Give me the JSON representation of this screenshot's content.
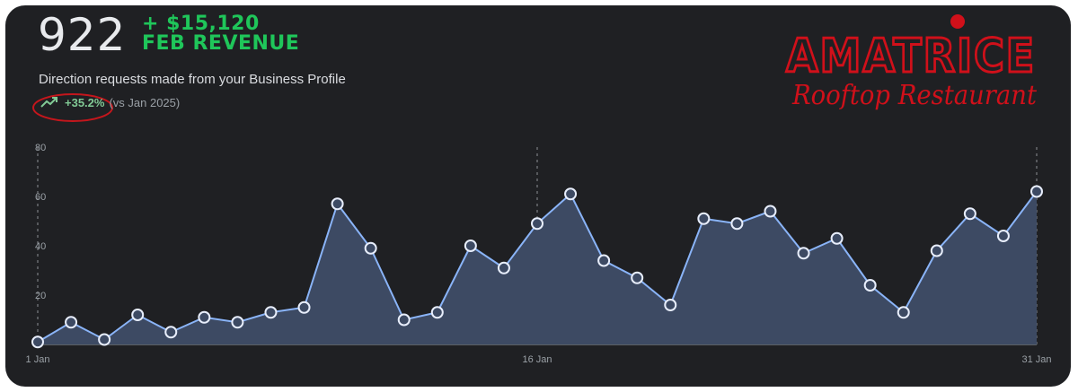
{
  "header": {
    "metric_value": "922",
    "revenue_line1": "+ $15,120",
    "revenue_line2": "FEB REVENUE",
    "subtitle": "Direction requests made from your Business Profile",
    "trend_icon": "trending-up-icon",
    "trend_value": "+35.2%",
    "trend_compare": "(vs Jan 2025)"
  },
  "logo": {
    "name": "AMATRICE",
    "tagline": "Rooftop Restaurant",
    "color": "#d0101a"
  },
  "colors": {
    "background": "#1f2023",
    "revenue": "#1fc65a",
    "trend": "#81c995",
    "line": "#8ab4f8",
    "area": "#3d4a63"
  },
  "chart_data": {
    "type": "area",
    "x": [
      "1 Jan",
      "2 Jan",
      "3 Jan",
      "4 Jan",
      "5 Jan",
      "6 Jan",
      "7 Jan",
      "8 Jan",
      "9 Jan",
      "10 Jan",
      "11 Jan",
      "12 Jan",
      "13 Jan",
      "14 Jan",
      "15 Jan",
      "16 Jan",
      "17 Jan",
      "18 Jan",
      "19 Jan",
      "20 Jan",
      "21 Jan",
      "22 Jan",
      "23 Jan",
      "24 Jan",
      "25 Jan",
      "26 Jan",
      "27 Jan",
      "28 Jan",
      "29 Jan",
      "30 Jan",
      "31 Jan"
    ],
    "values": [
      1,
      9,
      2,
      12,
      5,
      11,
      9,
      13,
      15,
      57,
      39,
      10,
      13,
      40,
      31,
      49,
      61,
      34,
      27,
      16,
      51,
      49,
      54,
      37,
      43,
      24,
      13,
      38,
      53,
      44,
      62
    ],
    "x_tick_labels": [
      "1 Jan",
      "16 Jan",
      "31 Jan"
    ],
    "y_tick_labels": [
      "20",
      "40",
      "60",
      "80"
    ],
    "ylim": [
      0,
      80
    ],
    "grid": false,
    "markers": "hollow-circles"
  }
}
